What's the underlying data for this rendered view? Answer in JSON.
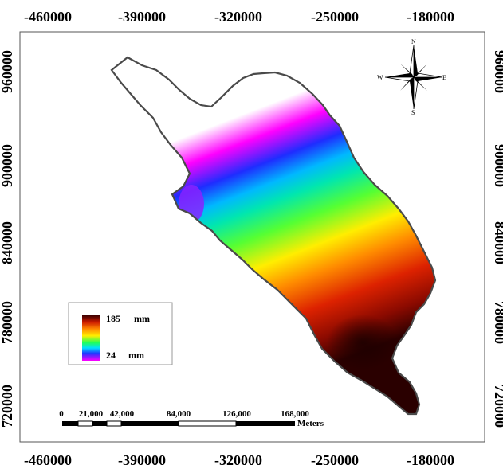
{
  "map": {
    "x_ticks": [
      "-460000",
      "-390000",
      "-320000",
      "-250000",
      "-180000"
    ],
    "y_ticks": [
      "960000",
      "900000",
      "840000",
      "780000",
      "720000"
    ],
    "legend": {
      "max_label": "185",
      "min_label": "24",
      "unit": "mm",
      "gradient_colors": [
        "#3a0000",
        "#cc1a00",
        "#ff8800",
        "#ffee00",
        "#22ff55",
        "#00e0ff",
        "#2233ff",
        "#ff00ff",
        "#ffffff"
      ]
    },
    "scalebar": {
      "labels": [
        "0",
        "21,000",
        "42,000",
        "84,000",
        "126,000",
        "168,000"
      ],
      "unit": "Meters"
    },
    "north_arrow": {
      "n": "N",
      "s": "S",
      "e": "E",
      "w": "W"
    }
  }
}
